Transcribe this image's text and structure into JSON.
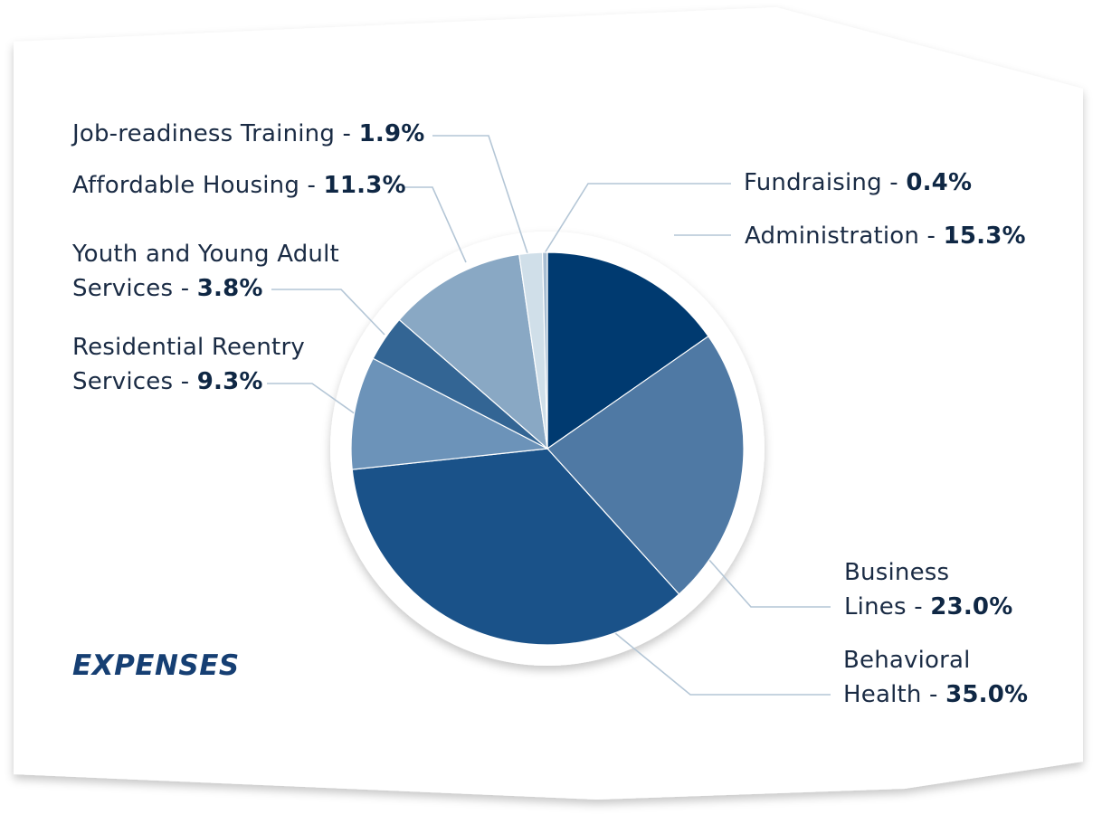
{
  "chart_data": {
    "type": "pie",
    "title": "EXPENSES",
    "slices": [
      {
        "label_lines": [
          "Administration"
        ],
        "value_text": "15.3%",
        "value": 15.3,
        "color": "#003a70"
      },
      {
        "label_lines": [
          "Business",
          "Lines"
        ],
        "value_text": "23.0%",
        "value": 23.0,
        "color": "#4f79a4"
      },
      {
        "label_lines": [
          "Behavioral",
          "Health"
        ],
        "value_text": "35.0%",
        "value": 35.0,
        "color": "#1a5289"
      },
      {
        "label_lines": [
          "Residential Reentry",
          "Services"
        ],
        "value_text": "9.3%",
        "value": 9.3,
        "color": "#6c93b9"
      },
      {
        "label_lines": [
          "Youth and Young Adult",
          "Services"
        ],
        "value_text": "3.8%",
        "value": 3.8,
        "color": "#336594"
      },
      {
        "label_lines": [
          "Affordable Housing"
        ],
        "value_text": "11.3%",
        "value": 11.3,
        "color": "#89a8c4"
      },
      {
        "label_lines": [
          "Job-readiness Training"
        ],
        "value_text": "1.9%",
        "value": 1.9,
        "color": "#d0dfe9"
      },
      {
        "label_lines": [
          "Fundraising"
        ],
        "value_text": "0.4%",
        "value": 0.4,
        "color": "#a8bed3"
      }
    ],
    "separator": " - ",
    "leader_line_color": "#b4c6d6",
    "background_color": "#ffffff"
  }
}
